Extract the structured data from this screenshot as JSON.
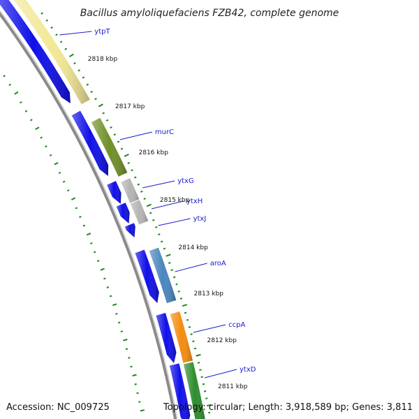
{
  "title": "Bacillus amyloliquefaciens FZB42, complete genome",
  "footer": {
    "accession": "Accession: NC_009725",
    "summary": "Topology: circular; Length: 3,918,589 bp; Genes: 3,811"
  },
  "colors": {
    "forward_strand": "#1010e8",
    "backbone": "#8a8a8a",
    "tick": "#1a8a1a",
    "gene_label": "#1a1acc"
  },
  "kbp_labels": [
    "2818 kbp",
    "2817 kbp",
    "2816 kbp",
    "2815 kbp",
    "2814 kbp",
    "2813 kbp",
    "2812 kbp",
    "2811 kbp"
  ],
  "genes": [
    {
      "label": "ytpT",
      "color": "#f2e896"
    },
    {
      "label": "murC",
      "color": "#6f8f28"
    },
    {
      "label": "ytxG",
      "color": "#b5b5b5"
    },
    {
      "label": "ytxH",
      "color": "#b5b5b5"
    },
    {
      "label": "ytxJ",
      "color": "#b5b5b5"
    },
    {
      "label": "aroA",
      "color": "#4a86bd"
    },
    {
      "label": "ccpA",
      "color": "#f58c10"
    },
    {
      "label": "ytxD",
      "color": "#2e8c2e"
    }
  ]
}
